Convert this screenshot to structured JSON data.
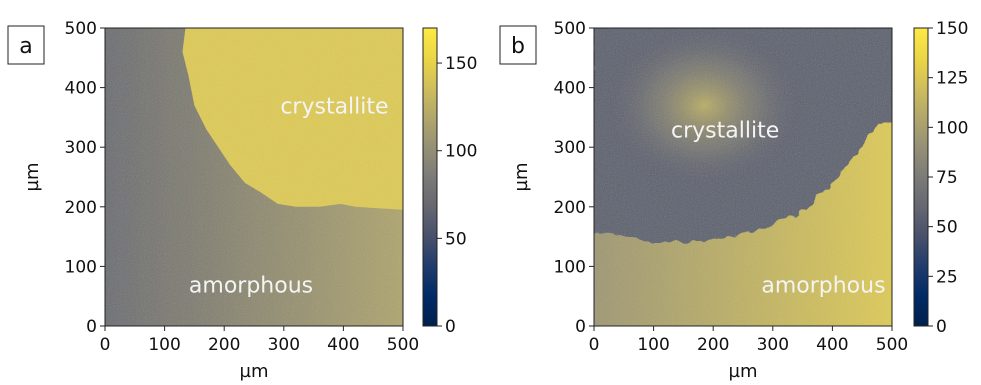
{
  "chart_data": [
    {
      "type": "heatmap",
      "panel_label": "a",
      "xlabel": "µm",
      "ylabel": "µm",
      "xlim": [
        0,
        500
      ],
      "ylim": [
        0,
        500
      ],
      "xticks": [
        0,
        100,
        200,
        300,
        400,
        500
      ],
      "yticks": [
        0,
        100,
        200,
        300,
        400,
        500
      ],
      "colorbar": {
        "min": 0,
        "max": 170,
        "ticks": [
          0,
          50,
          100,
          150
        ],
        "colormap": "cividis"
      },
      "annotations": [
        {
          "text": "crystallite",
          "x": 385,
          "y": 370
        },
        {
          "text": "amorphous",
          "x": 245,
          "y": 70
        }
      ],
      "regions": {
        "amorphous_value_left": 72,
        "amorphous_value_right": 118,
        "crystallite_value": 145,
        "crystallite_boundary": [
          [
            135,
            500
          ],
          [
            130,
            460
          ],
          [
            140,
            420
          ],
          [
            150,
            370
          ],
          [
            170,
            330
          ],
          [
            190,
            300
          ],
          [
            210,
            270
          ],
          [
            235,
            240
          ],
          [
            260,
            225
          ],
          [
            290,
            205
          ],
          [
            320,
            200
          ],
          [
            360,
            200
          ],
          [
            395,
            205
          ],
          [
            420,
            200
          ],
          [
            500,
            195
          ]
        ]
      }
    },
    {
      "type": "heatmap",
      "panel_label": "b",
      "xlabel": "µm",
      "ylabel": "µm",
      "xlim": [
        0,
        500
      ],
      "ylim": [
        0,
        500
      ],
      "xticks": [
        0,
        100,
        200,
        300,
        400,
        500
      ],
      "yticks": [
        0,
        100,
        200,
        300,
        400,
        500
      ],
      "colorbar": {
        "min": 0,
        "max": 150,
        "ticks": [
          0,
          25,
          50,
          75,
          100,
          125,
          150
        ],
        "colormap": "cividis"
      },
      "annotations": [
        {
          "text": "crystallite",
          "x": 220,
          "y": 330
        },
        {
          "text": "amorphous",
          "x": 385,
          "y": 70
        }
      ],
      "regions": {
        "amorphous_value_left": 95,
        "amorphous_value_right": 128,
        "crystallite_rim_value": 55,
        "crystallite_center_value": 115,
        "crystallite_center": [
          185,
          370
        ],
        "crystallite_boundary": [
          [
            0,
            160
          ],
          [
            20,
            155
          ],
          [
            60,
            150
          ],
          [
            100,
            140
          ],
          [
            150,
            140
          ],
          [
            200,
            145
          ],
          [
            240,
            150
          ],
          [
            270,
            160
          ],
          [
            300,
            170
          ],
          [
            330,
            185
          ],
          [
            360,
            200
          ],
          [
            380,
            220
          ],
          [
            400,
            240
          ],
          [
            420,
            265
          ],
          [
            440,
            290
          ],
          [
            460,
            320
          ],
          [
            480,
            340
          ],
          [
            500,
            345
          ]
        ]
      }
    }
  ]
}
